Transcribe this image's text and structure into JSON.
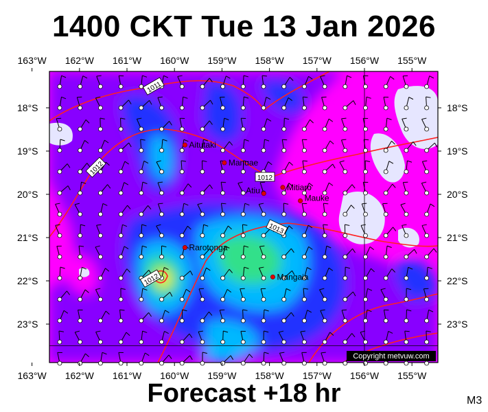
{
  "title": "1400 CKT Tue 13 Jan 2026",
  "footer": "Forecast +18 hr",
  "code": "M3",
  "copyright": "Copyright metvuw.com",
  "lon_labels": [
    "163°W",
    "162°W",
    "161°W",
    "160°W",
    "159°W",
    "158°W",
    "157°W",
    "156°W",
    "155°W"
  ],
  "lon_values": [
    -163,
    -162,
    -161,
    -160,
    -159,
    -158,
    -157,
    -156,
    -155
  ],
  "lat_labels": [
    "18°S",
    "19°S",
    "20°S",
    "21°S",
    "22°S",
    "23°S"
  ],
  "lat_values": [
    -18,
    -19,
    -20,
    -21,
    -22,
    -23
  ],
  "isobar_labels": [
    "1011",
    "1012",
    "1012",
    "1013",
    "1012"
  ],
  "colors": {
    "calm": "#e6e6ff",
    "light": "#ff00ff",
    "mid": "#8800ff",
    "strong": "#2030ff",
    "high": "#00b8ff",
    "peak": "#33e08a",
    "top": "#ffee00",
    "isobar": "#ff2020",
    "grid": "#000000"
  },
  "places": [
    {
      "name": "Aitutaki",
      "lon": -159.78,
      "lat": -18.86
    },
    {
      "name": "Manuae",
      "lon": -158.95,
      "lat": -19.27
    },
    {
      "name": "Mitiaro",
      "lon": -157.72,
      "lat": -19.84
    },
    {
      "name": "Atiu",
      "lon": -158.12,
      "lat": -19.98
    },
    {
      "name": "Mauke",
      "lon": -157.35,
      "lat": -20.15
    },
    {
      "name": "Rarotonga",
      "lon": -159.78,
      "lat": -21.23
    },
    {
      "name": "Mangaia",
      "lon": -157.93,
      "lat": -21.91
    }
  ]
}
